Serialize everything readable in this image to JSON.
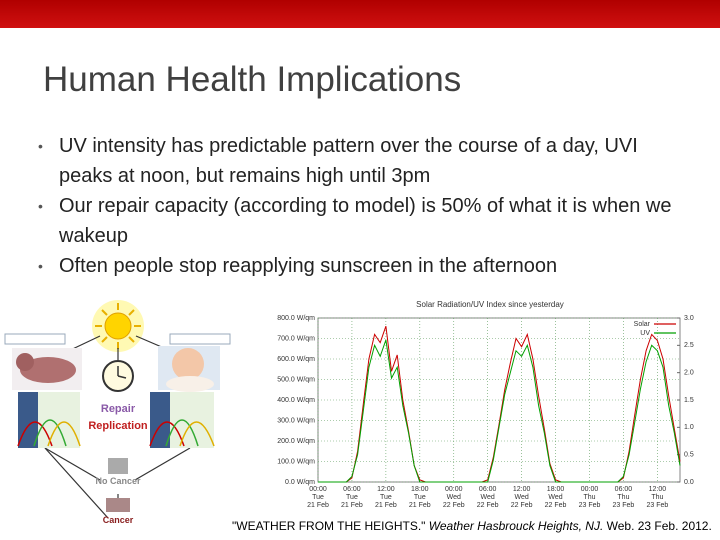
{
  "slide": {
    "title": "Human Health Implications",
    "bullets": [
      "UV intensity has predictable pattern over the course of a day, UVI peaks at noon, but remains high until 3pm",
      "Our repair capacity (according to model) is 50% of what it is when we wakeup",
      "Often people stop reapplying sunscreen in the afternoon"
    ],
    "diagram": {
      "repair": "Repair",
      "replication": "Replication",
      "no_cancer": "No Cancer",
      "cancer": "Cancer"
    },
    "citation": {
      "quoted": "\"WEATHER FROM THE HEIGHTS.\"",
      "source": "Weather Hasbrouck Heights, NJ.",
      "rest": "Web. 23 Feb. 2012."
    }
  },
  "chart_data": {
    "type": "line",
    "title": "Solar Radiation/UV Index since yesterday",
    "x": [
      0,
      1,
      2,
      3,
      4,
      5,
      6,
      7,
      8,
      9,
      10,
      11,
      12,
      13,
      14,
      15,
      16,
      17,
      18,
      19,
      20,
      21,
      22,
      23,
      24,
      25,
      26,
      27,
      28,
      29,
      30,
      31,
      32,
      33,
      34,
      35,
      36,
      37,
      38,
      39,
      40,
      41,
      42,
      43,
      44,
      45,
      46,
      47,
      48,
      49,
      50,
      51,
      52,
      53,
      54,
      55,
      56,
      57,
      58,
      59,
      60,
      61,
      62,
      63,
      64
    ],
    "series": [
      {
        "name": "Solar",
        "color": "#cc0000",
        "values": [
          0,
          0,
          0,
          0,
          0,
          0,
          20,
          150,
          380,
          600,
          720,
          680,
          760,
          540,
          620,
          400,
          250,
          80,
          10,
          0,
          0,
          0,
          0,
          0,
          0,
          0,
          0,
          0,
          0,
          0,
          10,
          120,
          280,
          450,
          580,
          700,
          660,
          720,
          600,
          420,
          260,
          90,
          10,
          0,
          0,
          0,
          0,
          0,
          0,
          0,
          0,
          0,
          0,
          0,
          20,
          150,
          330,
          500,
          640,
          720,
          690,
          600,
          420,
          260,
          100
        ]
      },
      {
        "name": "UV",
        "color": "#00a000",
        "axis": "y2",
        "values": [
          0,
          0,
          0,
          0,
          0,
          0,
          0.1,
          0.5,
          1.3,
          2.1,
          2.5,
          2.3,
          2.6,
          1.9,
          2.1,
          1.4,
          0.9,
          0.3,
          0,
          0,
          0,
          0,
          0,
          0,
          0,
          0,
          0,
          0,
          0,
          0,
          0,
          0.4,
          1.0,
          1.6,
          2.0,
          2.4,
          2.3,
          2.5,
          2.1,
          1.4,
          0.9,
          0.3,
          0,
          0,
          0,
          0,
          0,
          0,
          0,
          0,
          0,
          0,
          0,
          0,
          0.1,
          0.5,
          1.1,
          1.7,
          2.2,
          2.5,
          2.4,
          2.1,
          1.4,
          0.9,
          0.3
        ]
      }
    ],
    "xlim": [
      0,
      64
    ],
    "xticks": [
      {
        "value": 0,
        "label": "00:00 Tue 21 Feb"
      },
      {
        "value": 6,
        "label": "06:00 Tue 21 Feb"
      },
      {
        "value": 12,
        "label": "12:00 Tue 21 Feb"
      },
      {
        "value": 18,
        "label": "18:00 Tue 21 Feb"
      },
      {
        "value": 24,
        "label": "00:00 Wed 22 Feb"
      },
      {
        "value": 30,
        "label": "06:00 Wed 22 Feb"
      },
      {
        "value": 36,
        "label": "12:00 Wed 22 Feb"
      },
      {
        "value": 42,
        "label": "18:00 Wed 22 Feb"
      },
      {
        "value": 48,
        "label": "00:00 Thu 23 Feb"
      },
      {
        "value": 54,
        "label": "06:00 Thu 23 Feb"
      },
      {
        "value": 60,
        "label": "12:00 Thu 23 Feb"
      }
    ],
    "ylim": [
      0,
      800
    ],
    "yticks": [
      {
        "value": 0,
        "label": "0.0 W/qm"
      },
      {
        "value": 100,
        "label": "100.0 W/qm"
      },
      {
        "value": 200,
        "label": "200.0 W/qm"
      },
      {
        "value": 300,
        "label": "300.0 W/qm"
      },
      {
        "value": 400,
        "label": "400.0 W/qm"
      },
      {
        "value": 500,
        "label": "500.0 W/qm"
      },
      {
        "value": 600,
        "label": "600.0 W/qm"
      },
      {
        "value": 700,
        "label": "700.0 W/qm"
      },
      {
        "value": 800,
        "label": "800.0 W/qm"
      }
    ],
    "y2lim": [
      0,
      3
    ],
    "y2ticks": [
      {
        "value": 0,
        "label": "0.0"
      },
      {
        "value": 0.5,
        "label": "0.5"
      },
      {
        "value": 1,
        "label": "1.0"
      },
      {
        "value": 1.5,
        "label": "1.5"
      },
      {
        "value": 2,
        "label": "2.0"
      },
      {
        "value": 2.5,
        "label": "2.5"
      },
      {
        "value": 3,
        "label": "3.0"
      }
    ],
    "grid": true,
    "legend": "top-right"
  }
}
